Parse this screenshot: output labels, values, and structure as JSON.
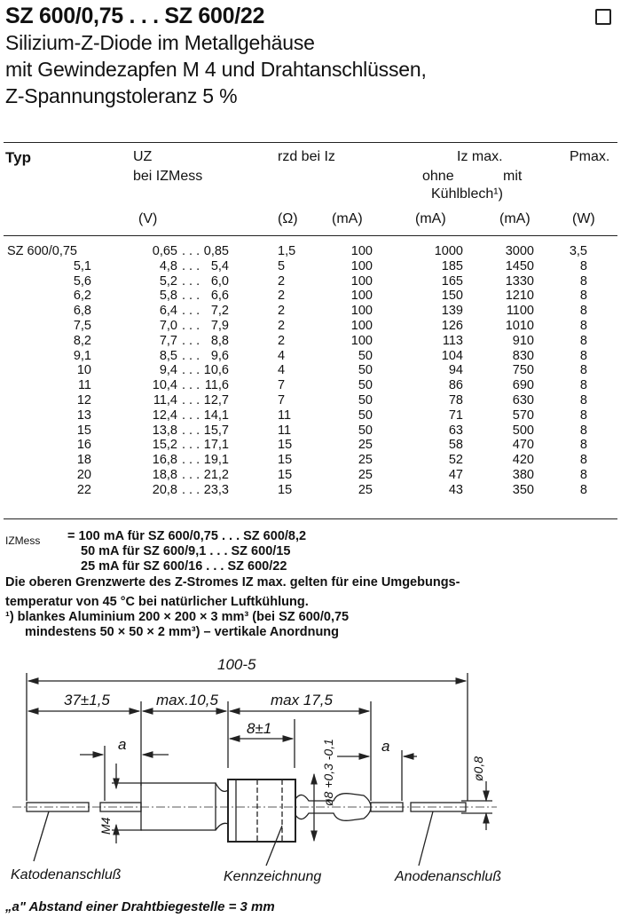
{
  "header": {
    "title": "SZ 600/0,75 . . . SZ 600/22",
    "subtitle_lines": [
      "Silizium-Z-Diode im Metallgehäuse",
      "mit Gewindezapfen M 4 und Drahtanschlüssen,",
      "Z-Spannungstoleranz 5 %"
    ]
  },
  "table": {
    "columns": {
      "typ": "Typ",
      "uz": "UZ",
      "uz_sub": "bei IZMess",
      "rzd": "rzd bei Iz",
      "iz_max": "Iz max.",
      "ohne": "ohne",
      "mit": "mit",
      "kuehlblech": "Kühlblech¹)",
      "pmax": "Pmax.",
      "unit_v": "(V)",
      "unit_ohm": "(Ω)",
      "unit_ma1": "(mA)",
      "unit_ma2": "(mA)",
      "unit_ma3": "(mA)",
      "unit_w": "(W)"
    },
    "rows": [
      {
        "typ": "SZ 600/0,75",
        "uz_min": "0,65",
        "uz_max": "0,85",
        "rzd": "1,5",
        "iz": "100",
        "ohne": "1000",
        "mit": "3000",
        "p": "3,5"
      },
      {
        "typ": "5,1",
        "uz_min": "4,8",
        "uz_max": "5,4",
        "rzd": "5",
        "iz": "100",
        "ohne": "185",
        "mit": "1450",
        "p": "8"
      },
      {
        "typ": "5,6",
        "uz_min": "5,2",
        "uz_max": "6,0",
        "rzd": "2",
        "iz": "100",
        "ohne": "165",
        "mit": "1330",
        "p": "8"
      },
      {
        "typ": "6,2",
        "uz_min": "5,8",
        "uz_max": "6,6",
        "rzd": "2",
        "iz": "100",
        "ohne": "150",
        "mit": "1210",
        "p": "8"
      },
      {
        "typ": "6,8",
        "uz_min": "6,4",
        "uz_max": "7,2",
        "rzd": "2",
        "iz": "100",
        "ohne": "139",
        "mit": "1100",
        "p": "8"
      },
      {
        "typ": "7,5",
        "uz_min": "7,0",
        "uz_max": "7,9",
        "rzd": "2",
        "iz": "100",
        "ohne": "126",
        "mit": "1010",
        "p": "8"
      },
      {
        "typ": "8,2",
        "uz_min": "7,7",
        "uz_max": "8,8",
        "rzd": "2",
        "iz": "100",
        "ohne": "113",
        "mit": "910",
        "p": "8"
      },
      {
        "typ": "9,1",
        "uz_min": "8,5",
        "uz_max": "9,6",
        "rzd": "4",
        "iz": "50",
        "ohne": "104",
        "mit": "830",
        "p": "8"
      },
      {
        "typ": "10",
        "uz_min": "9,4",
        "uz_max": "10,6",
        "rzd": "4",
        "iz": "50",
        "ohne": "94",
        "mit": "750",
        "p": "8"
      },
      {
        "typ": "11",
        "uz_min": "10,4",
        "uz_max": "11,6",
        "rzd": "7",
        "iz": "50",
        "ohne": "86",
        "mit": "690",
        "p": "8"
      },
      {
        "typ": "12",
        "uz_min": "11,4",
        "uz_max": "12,7",
        "rzd": "7",
        "iz": "50",
        "ohne": "78",
        "mit": "630",
        "p": "8"
      },
      {
        "typ": "13",
        "uz_min": "12,4",
        "uz_max": "14,1",
        "rzd": "11",
        "iz": "50",
        "ohne": "71",
        "mit": "570",
        "p": "8"
      },
      {
        "typ": "15",
        "uz_min": "13,8",
        "uz_max": "15,7",
        "rzd": "11",
        "iz": "50",
        "ohne": "63",
        "mit": "500",
        "p": "8"
      },
      {
        "typ": "16",
        "uz_min": "15,2",
        "uz_max": "17,1",
        "rzd": "15",
        "iz": "25",
        "ohne": "58",
        "mit": "470",
        "p": "8"
      },
      {
        "typ": "18",
        "uz_min": "16,8",
        "uz_max": "19,1",
        "rzd": "15",
        "iz": "25",
        "ohne": "52",
        "mit": "420",
        "p": "8"
      },
      {
        "typ": "20",
        "uz_min": "18,8",
        "uz_max": "21,2",
        "rzd": "15",
        "iz": "25",
        "ohne": "47",
        "mit": "380",
        "p": "8"
      },
      {
        "typ": "22",
        "uz_min": "20,8",
        "uz_max": "23,3",
        "rzd": "15",
        "iz": "25",
        "ohne": "43",
        "mit": "350",
        "p": "8"
      }
    ],
    "range_sep": ". . ."
  },
  "notes": {
    "izmess_label": "IZMess",
    "izmess_lines": [
      "= 100 mA für SZ 600/0,75 . . . SZ 600/8,2",
      "50 mA für SZ 600/9,1   . . . SZ 600/15",
      "25 mA für SZ 600/16    . . . SZ 600/22"
    ],
    "limits_line1": "Die oberen Grenzwerte des Z-Stromes IZ max. gelten für eine Umgebungs-",
    "limits_line2": "temperatur von 45 °C bei natürlicher Luftkühlung.",
    "footnote_line1": "¹) blankes Aluminium 200 × 200 × 3 mm³ (bei SZ 600/0,75",
    "footnote_line2": "mindestens 50 × 50 × 2 mm³) – vertikale Anordnung"
  },
  "drawing": {
    "dim_total": "100-5",
    "dim_left_wire": "37±1,5",
    "dim_thread": "max.10,5",
    "dim_body": "max 17,5",
    "dim_hex": "8±1",
    "dim_a_left": "a",
    "dim_a_right": "a",
    "dim_dia": "ø8 +0,3 -0,1",
    "dim_wire_dia": "ø0,8",
    "dim_m4": "M4",
    "label_cathode": "Katodenanschluß",
    "label_marking": "Kennzeichnung",
    "label_anode": "Anodenanschluß",
    "caption": "„a\" Abstand einer Drahtbiegestelle = 3 mm"
  }
}
